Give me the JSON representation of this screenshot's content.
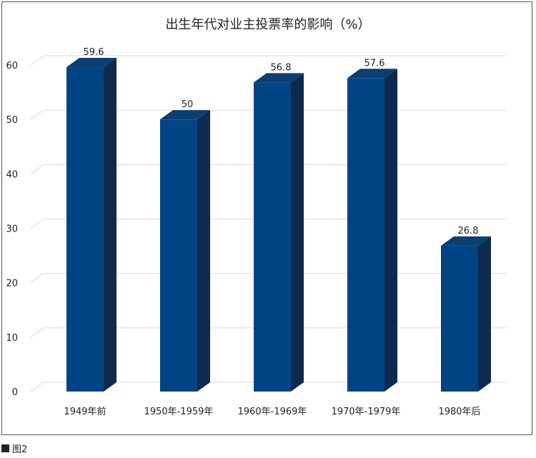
{
  "chart_data": {
    "type": "bar",
    "title": "出生年代对业主投票率的影响（%）",
    "categories": [
      "1949年前",
      "1950年-1959年",
      "1960年-1969年",
      "1970年-1979年",
      "1980年后"
    ],
    "values": [
      59.6,
      50,
      56.8,
      57.6,
      26.8
    ],
    "data_labels": [
      "59.6",
      "50",
      "56.8",
      "57.6",
      "26.8"
    ],
    "xlabel": "",
    "ylabel": "",
    "ylim": [
      0,
      60
    ],
    "yticks": [
      0,
      10,
      20,
      30,
      40,
      50,
      60
    ],
    "grid": true,
    "legend": "none",
    "style": "3d-column",
    "colors": {
      "bar_front": "#004484",
      "bar_top": "#0b3f72",
      "bar_side": "#0d2a4e",
      "grid": "#d9d9d9"
    }
  },
  "caption": {
    "text": "图2"
  }
}
